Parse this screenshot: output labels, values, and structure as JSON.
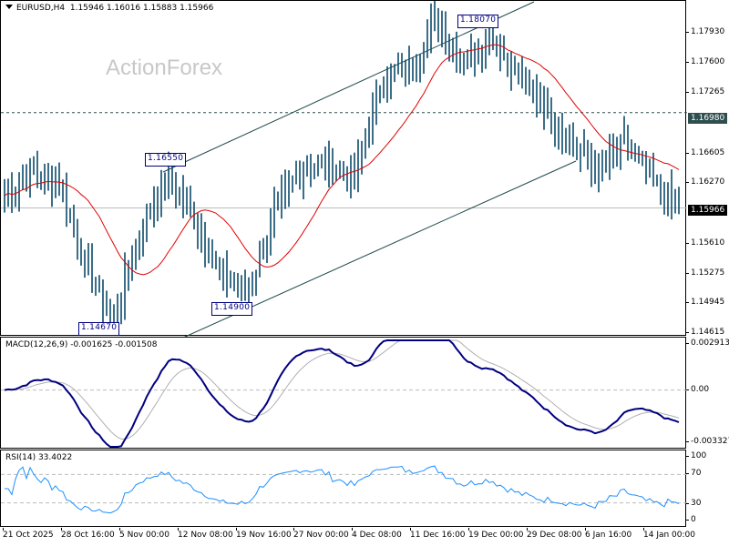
{
  "header": {
    "symbol": "EURUSD,H4",
    "ohlc": "1.15946 1.16016 1.15883 1.15966"
  },
  "watermark": "ActionForex",
  "main_axis": {
    "ticks": [
      "1.17930",
      "1.17600",
      "1.17265",
      "1.16935",
      "1.16605",
      "1.16270",
      "1.15940",
      "1.15610",
      "1.15275",
      "1.14945",
      "1.14615"
    ],
    "current_price_label": "1.15966",
    "level_label": "1.16980"
  },
  "annotations": {
    "high": "1.18070",
    "swing_high": "1.16550",
    "low": "1.14670",
    "swing_low": "1.14900"
  },
  "macd": {
    "title": "MACD(12,26,9) -0.001625 -0.001508",
    "ticks": [
      "0.002913",
      "0.00",
      "-0.003327"
    ]
  },
  "rsi": {
    "title": "RSI(14) 33.4022",
    "ticks": [
      "100",
      "70",
      "30",
      "0"
    ]
  },
  "xaxis": {
    "labels": [
      "21 Oct 2025",
      "28 Oct 16:00",
      "5 Nov 00:00",
      "12 Nov 08:00",
      "19 Nov 16:00",
      "27 Nov 00:00",
      "4 Dec 08:00",
      "11 Dec 16:00",
      "19 Dec 00:00",
      "29 Dec 08:00",
      "6 Jan 16:00",
      "14 Jan 00:00"
    ]
  },
  "colors": {
    "bars": "#0b4a6b",
    "ma": "#e00000",
    "macd": "#000080",
    "signal": "#b0b0b0",
    "rsi": "#1e8fff",
    "channel": "#1f4a4a",
    "annot": "#000080"
  },
  "chart_data": [
    {
      "type": "ohlc",
      "title": "EURUSD,H4",
      "ylim": [
        1.14615,
        1.1815
      ],
      "x_labels": [
        "21 Oct 2025",
        "28 Oct 16:00",
        "5 Nov 00:00",
        "12 Nov 08:00",
        "19 Nov 16:00",
        "27 Nov 00:00",
        "4 Dec 08:00",
        "11 Dec 16:00",
        "19 Dec 00:00",
        "29 Dec 08:00",
        "6 Jan 16:00",
        "14 Jan 00:00"
      ],
      "last": {
        "open": 1.15946,
        "high": 1.16016,
        "low": 1.15883,
        "close": 1.15966
      },
      "key_levels": {
        "resistance_line": 1.1698,
        "current": 1.15966
      },
      "swings": [
        {
          "label": "1.14670",
          "type": "low",
          "approx_date": "5 Nov"
        },
        {
          "label": "1.16550",
          "type": "high",
          "approx_date": "13 Nov"
        },
        {
          "label": "1.14900",
          "type": "low",
          "approx_date": "21 Nov"
        },
        {
          "label": "1.18070",
          "type": "high",
          "approx_date": "17 Dec"
        }
      ],
      "approx_close_path": [
        {
          "x": "21 Oct 2025",
          "y": 1.161
        },
        {
          "x": "24 Oct",
          "y": 1.1635
        },
        {
          "x": "28 Oct 16:00",
          "y": 1.1625
        },
        {
          "x": "31 Oct",
          "y": 1.1535
        },
        {
          "x": "5 Nov 00:00",
          "y": 1.1475
        },
        {
          "x": "10 Nov",
          "y": 1.157
        },
        {
          "x": "13 Nov",
          "y": 1.163
        },
        {
          "x": "17 Nov",
          "y": 1.159
        },
        {
          "x": "19 Nov 16:00",
          "y": 1.1525
        },
        {
          "x": "21 Nov",
          "y": 1.1505
        },
        {
          "x": "27 Nov 00:00",
          "y": 1.159
        },
        {
          "x": "1 Dec",
          "y": 1.164
        },
        {
          "x": "4 Dec 08:00",
          "y": 1.1645
        },
        {
          "x": "8 Dec",
          "y": 1.163
        },
        {
          "x": "11 Dec 16:00",
          "y": 1.1735
        },
        {
          "x": "15 Dec",
          "y": 1.1745
        },
        {
          "x": "17 Dec",
          "y": 1.1795
        },
        {
          "x": "19 Dec 00:00",
          "y": 1.1755
        },
        {
          "x": "24 Dec",
          "y": 1.178
        },
        {
          "x": "29 Dec 08:00",
          "y": 1.174
        },
        {
          "x": "1 Jan",
          "y": 1.1705
        },
        {
          "x": "6 Jan 16:00",
          "y": 1.1665
        },
        {
          "x": "9 Jan",
          "y": 1.1635
        },
        {
          "x": "12 Jan",
          "y": 1.1665
        },
        {
          "x": "14 Jan 00:00",
          "y": 1.1625
        },
        {
          "x": "15 Jan",
          "y": 1.15966
        }
      ],
      "overlays": [
        "moving average (red)",
        "ascending channel",
        "horizontal line 1.16980"
      ]
    },
    {
      "type": "line",
      "title": "MACD(12,26,9) -0.001625 -0.001508",
      "ylim": [
        -0.003327,
        0.002913
      ],
      "series": [
        {
          "name": "MACD",
          "last": -0.001625
        },
        {
          "name": "Signal",
          "last": -0.001508
        }
      ]
    },
    {
      "type": "line",
      "title": "RSI(14) 33.4022",
      "ylim": [
        0,
        100
      ],
      "levels": [
        30,
        70
      ],
      "series": [
        {
          "name": "RSI(14)",
          "last": 33.4022
        }
      ]
    }
  ]
}
